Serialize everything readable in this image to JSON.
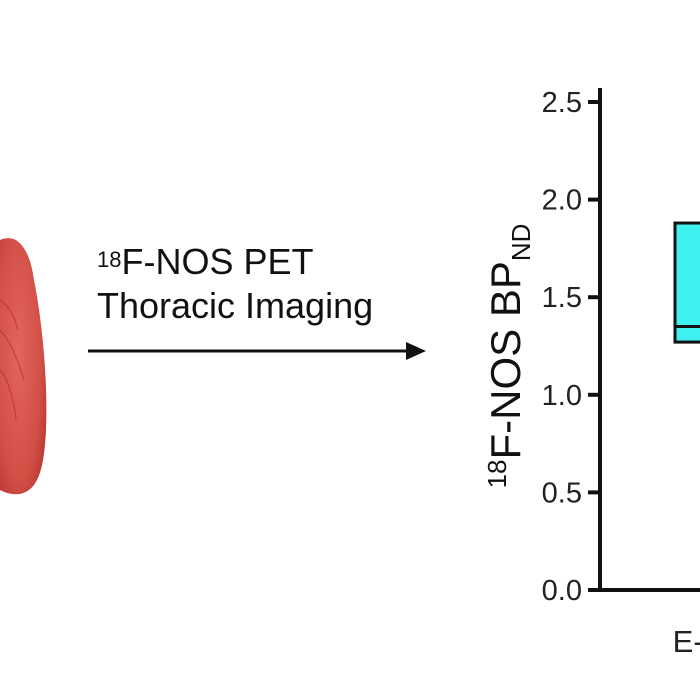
{
  "caption": {
    "line1_sup": "18",
    "line1_text": "F-NOS PET",
    "line2_text": "Thoracic Imaging"
  },
  "colors": {
    "lung": "#d9534a",
    "box_fill": "#3ef0ee",
    "axis": "#111111"
  },
  "chart_data": {
    "type": "box",
    "ylabel_sup": "18",
    "ylabel_text": "F-NOS BP",
    "ylabel_sub": "ND",
    "ylim": [
      0.0,
      2.5
    ],
    "yticks": [
      "0.0",
      "0.5",
      "1.0",
      "1.5",
      "2.0",
      "2.5"
    ],
    "categories": [
      "E-cig"
    ],
    "boxes": [
      {
        "category": "E-cig",
        "q1": 1.27,
        "median": 1.35,
        "q3": 1.88
      }
    ]
  }
}
